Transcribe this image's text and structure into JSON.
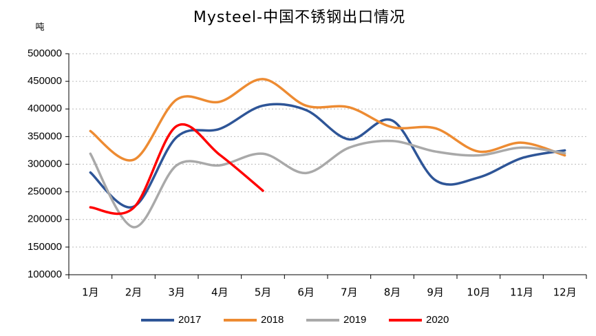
{
  "chart_data": {
    "type": "line",
    "title": "Mysteel-中国不锈钢出口情况",
    "y_unit": "吨",
    "categories": [
      "1月",
      "2月",
      "3月",
      "4月",
      "5月",
      "6月",
      "7月",
      "8月",
      "9月",
      "10月",
      "11月",
      "12月"
    ],
    "series": [
      {
        "name": "2017",
        "color": "#2e5597",
        "values": [
          285000,
          223000,
          349000,
          364000,
          406000,
          398000,
          345000,
          379000,
          271000,
          276000,
          311000,
          325000
        ]
      },
      {
        "name": "2018",
        "color": "#ed8b32",
        "values": [
          360000,
          308000,
          417000,
          413000,
          454000,
          406000,
          403000,
          367000,
          365000,
          323000,
          339000,
          316000
        ]
      },
      {
        "name": "2019",
        "color": "#a9a9a9",
        "values": [
          319000,
          186000,
          298000,
          298000,
          319000,
          284000,
          330000,
          342000,
          323000,
          316000,
          330000,
          320000
        ]
      },
      {
        "name": "2020",
        "color": "#ff0000",
        "values": [
          222000,
          221000,
          369000,
          317000,
          252000,
          null,
          null,
          null,
          null,
          null,
          null,
          null
        ]
      }
    ],
    "ylim": [
      100000,
      500000
    ],
    "yticks": [
      100000,
      150000,
      200000,
      250000,
      300000,
      350000,
      400000,
      450000,
      500000
    ],
    "grid": true,
    "smooth": true,
    "legend": "bottom"
  }
}
